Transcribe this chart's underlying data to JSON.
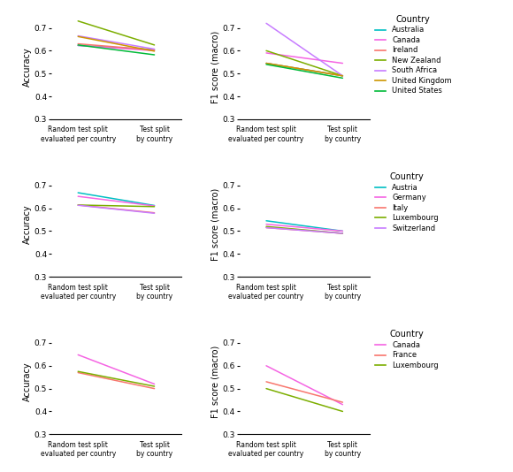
{
  "rows": [
    {
      "countries": [
        "Australia",
        "Canada",
        "Ireland",
        "New Zealand",
        "South Africa",
        "United Kingdom",
        "United States"
      ],
      "colors": [
        "#00BFC4",
        "#F564E3",
        "#F8766D",
        "#7CAE00",
        "#C77CFF",
        "#CD9600",
        "#00BA38"
      ],
      "accuracy_random": [
        0.623,
        0.623,
        0.63,
        0.73,
        0.665,
        0.662,
        0.625
      ],
      "accuracy_test": [
        0.605,
        0.6,
        0.603,
        0.625,
        0.607,
        0.598,
        0.582
      ],
      "f1_random": [
        0.545,
        0.59,
        0.545,
        0.6,
        0.72,
        0.545,
        0.54
      ],
      "f1_test": [
        0.49,
        0.545,
        0.49,
        0.49,
        0.49,
        0.49,
        0.48
      ]
    },
    {
      "countries": [
        "Austria",
        "Germany",
        "Italy",
        "Luxembourg",
        "Switzerland"
      ],
      "colors": [
        "#00BFC4",
        "#F564E3",
        "#F8766D",
        "#7CAE00",
        "#C77CFF"
      ],
      "accuracy_random": [
        0.668,
        0.652,
        0.614,
        0.614,
        0.613
      ],
      "accuracy_test": [
        0.612,
        0.61,
        0.58,
        0.607,
        0.578
      ],
      "f1_random": [
        0.545,
        0.53,
        0.515,
        0.52,
        0.515
      ],
      "f1_test": [
        0.5,
        0.5,
        0.49,
        0.49,
        0.49
      ]
    },
    {
      "countries": [
        "Canada",
        "France",
        "Luxembourg"
      ],
      "colors": [
        "#F564E3",
        "#F8766D",
        "#7CAE00"
      ],
      "accuracy_random": [
        0.648,
        0.57,
        0.575
      ],
      "accuracy_test": [
        0.52,
        0.5,
        0.51
      ],
      "f1_random": [
        0.6,
        0.53,
        0.5
      ],
      "f1_test": [
        0.43,
        0.44,
        0.4
      ]
    }
  ],
  "ylim": [
    0.3,
    0.76
  ],
  "yticks": [
    0.3,
    0.4,
    0.5,
    0.6,
    0.7
  ],
  "xtick_labels": [
    "Random test split\nevaluated per country",
    "Test split\nby country"
  ],
  "ylabel_acc": "Accuracy",
  "ylabel_f1": "F1 score (macro)",
  "legend_title": "Country",
  "bg_color": "white"
}
